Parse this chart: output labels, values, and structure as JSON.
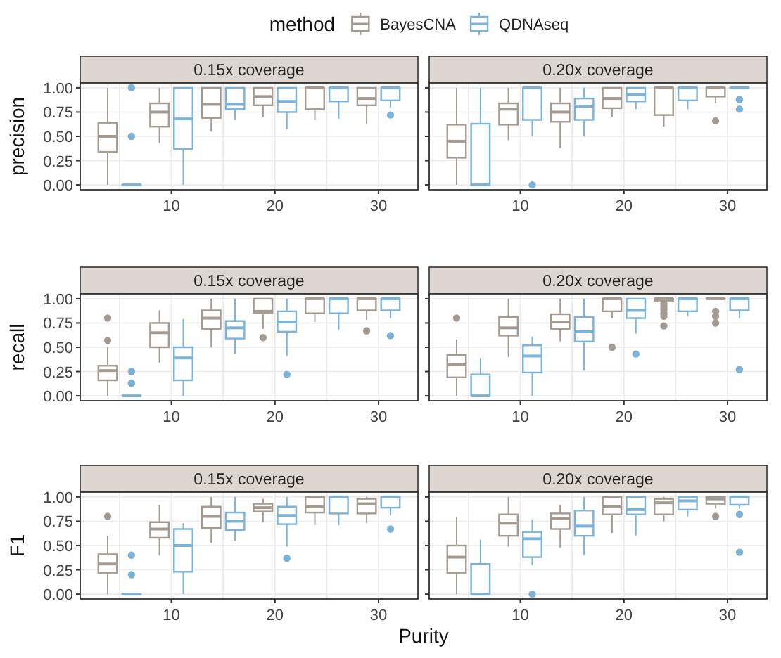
{
  "chart_data": [
    {
      "type": "box",
      "title": "0.15x coverage",
      "ylabel": "precision",
      "legend_title": "method",
      "legend": "top",
      "categories": [
        null,
        "10",
        null,
        "20",
        null,
        "30"
      ],
      "ylim": [
        -0.05,
        1.05
      ],
      "yticks": [
        {
          "value": 0,
          "label": "0.00"
        },
        {
          "value": 0.25,
          "label": "0.25"
        },
        {
          "value": 0.5,
          "label": "0.50"
        },
        {
          "value": 0.75,
          "label": "0.75"
        },
        {
          "value": 1,
          "label": "1.00"
        }
      ],
      "grid": true,
      "series": [
        {
          "name": "BayesCNA",
          "color": "#a39b91",
          "boxes": [
            {
              "low": 0,
              "q1": 0.34,
              "median": 0.5,
              "q3": 0.64,
              "high": 1
            },
            {
              "low": 0.43,
              "q1": 0.6,
              "median": 0.75,
              "q3": 0.84,
              "high": 1
            },
            {
              "low": 0.55,
              "q1": 0.69,
              "median": 0.83,
              "q3": 1,
              "high": 1
            },
            {
              "low": 0.7,
              "q1": 0.82,
              "median": 0.91,
              "q3": 1,
              "high": 1
            },
            {
              "low": 0.67,
              "q1": 0.78,
              "median": 1,
              "q3": 1,
              "high": 1
            },
            {
              "low": 0.63,
              "q1": 0.82,
              "median": 0.89,
              "q3": 1,
              "high": 1
            }
          ]
        },
        {
          "name": "QDNAseq",
          "color": "#7bb3d9",
          "boxes": [
            {
              "low": 0,
              "q1": 0,
              "median": 0,
              "q3": 0,
              "high": 0,
              "outliers": [
                0.5,
                1
              ]
            },
            {
              "low": 0,
              "q1": 0.37,
              "median": 0.68,
              "q3": 1,
              "high": 1
            },
            {
              "low": 0.67,
              "q1": 0.78,
              "median": 0.83,
              "q3": 1,
              "high": 1
            },
            {
              "low": 0.57,
              "q1": 0.75,
              "median": 0.86,
              "q3": 1,
              "high": 1
            },
            {
              "low": 0.68,
              "q1": 0.86,
              "median": 1,
              "q3": 1,
              "high": 1
            },
            {
              "low": 0.8,
              "q1": 0.87,
              "median": 1,
              "q3": 1,
              "high": 1,
              "outliers": [
                0.72
              ]
            }
          ]
        }
      ]
    },
    {
      "type": "box",
      "title": "0.20x coverage",
      "tick_labels": "x",
      "categories": [
        null,
        "10",
        null,
        "20",
        null,
        "30"
      ],
      "ylim": [
        -0.05,
        1.05
      ],
      "yticks": [
        0,
        0.25,
        0.5,
        0.75,
        1
      ],
      "grid": true,
      "series": [
        {
          "color": "#a39b91",
          "boxes": [
            {
              "low": 0,
              "q1": 0.28,
              "median": 0.45,
              "q3": 0.62,
              "high": 1
            },
            {
              "low": 0.46,
              "q1": 0.62,
              "median": 0.78,
              "q3": 0.84,
              "high": 1
            },
            {
              "low": 0.38,
              "q1": 0.65,
              "median": 0.75,
              "q3": 0.84,
              "high": 1
            },
            {
              "low": 0.7,
              "q1": 0.79,
              "median": 0.89,
              "q3": 1,
              "high": 1
            },
            {
              "low": 0.6,
              "q1": 0.72,
              "median": 1,
              "q3": 1,
              "high": 1
            },
            {
              "low": 0.84,
              "q1": 0.91,
              "median": 1,
              "q3": 1,
              "high": 1,
              "outliers": [
                0.66
              ]
            }
          ]
        },
        {
          "color": "#7bb3d9",
          "boxes": [
            {
              "low": 0,
              "q1": 0,
              "median": 0,
              "q3": 0.63,
              "high": 1
            },
            {
              "low": 0.5,
              "q1": 0.67,
              "median": 1,
              "q3": 1,
              "high": 1,
              "outliers": [
                0
              ]
            },
            {
              "low": 0.5,
              "q1": 0.67,
              "median": 0.81,
              "q3": 0.89,
              "high": 1
            },
            {
              "low": 0.78,
              "q1": 0.86,
              "median": 0.93,
              "q3": 1,
              "high": 1
            },
            {
              "low": 0.78,
              "q1": 0.87,
              "median": 1,
              "q3": 1,
              "high": 1
            },
            {
              "low": 1,
              "q1": 1,
              "median": 1,
              "q3": 1,
              "high": 1,
              "outliers": [
                0.88,
                0.78
              ]
            }
          ]
        }
      ]
    },
    {
      "type": "box",
      "title": "0.15x coverage",
      "ylabel": "recall",
      "categories": [
        null,
        "10",
        null,
        "20",
        null,
        "30"
      ],
      "ylim": [
        -0.05,
        1.05
      ],
      "yticks": [
        {
          "value": 0,
          "label": "0.00"
        },
        {
          "value": 0.25,
          "label": "0.25"
        },
        {
          "value": 0.5,
          "label": "0.50"
        },
        {
          "value": 0.75,
          "label": "0.75"
        },
        {
          "value": 1,
          "label": "1.00"
        }
      ],
      "grid": true,
      "series": [
        {
          "color": "#a39b91",
          "boxes": [
            {
              "low": 0,
              "q1": 0.16,
              "median": 0.26,
              "q3": 0.31,
              "high": 0.5,
              "outliers": [
                0.8,
                0.57
              ]
            },
            {
              "low": 0.34,
              "q1": 0.5,
              "median": 0.65,
              "q3": 0.75,
              "high": 0.88
            },
            {
              "low": 0.5,
              "q1": 0.69,
              "median": 0.8,
              "q3": 0.88,
              "high": 1
            },
            {
              "low": 0.69,
              "q1": 0.85,
              "median": 0.87,
              "q3": 1,
              "high": 1,
              "outliers": [
                0.6
              ]
            },
            {
              "low": 0.76,
              "q1": 0.85,
              "median": 1,
              "q3": 1,
              "high": 1
            },
            {
              "low": 0.78,
              "q1": 0.88,
              "median": 1,
              "q3": 1,
              "high": 1,
              "outliers": [
                0.67
              ]
            }
          ]
        },
        {
          "color": "#7bb3d9",
          "boxes": [
            {
              "low": 0,
              "q1": 0,
              "median": 0,
              "q3": 0,
              "high": 0,
              "outliers": [
                0.25,
                0.13
              ]
            },
            {
              "low": 0,
              "q1": 0.16,
              "median": 0.39,
              "q3": 0.5,
              "high": 0.79
            },
            {
              "low": 0.43,
              "q1": 0.59,
              "median": 0.7,
              "q3": 0.77,
              "high": 1
            },
            {
              "low": 0.41,
              "q1": 0.66,
              "median": 0.76,
              "q3": 0.87,
              "high": 1,
              "outliers": [
                0.22
              ]
            },
            {
              "low": 0.68,
              "q1": 0.85,
              "median": 1,
              "q3": 1,
              "high": 1
            },
            {
              "low": 0.8,
              "q1": 0.88,
              "median": 1,
              "q3": 1,
              "high": 1,
              "outliers": [
                0.62
              ]
            }
          ]
        }
      ]
    },
    {
      "type": "box",
      "title": "0.20x coverage",
      "tick_labels": "x",
      "categories": [
        null,
        "10",
        null,
        "20",
        null,
        "30"
      ],
      "ylim": [
        -0.05,
        1.05
      ],
      "yticks": [
        0,
        0.25,
        0.5,
        0.75,
        1
      ],
      "grid": true,
      "series": [
        {
          "color": "#a39b91",
          "boxes": [
            {
              "low": 0,
              "q1": 0.19,
              "median": 0.32,
              "q3": 0.42,
              "high": 0.58,
              "outliers": [
                0.8
              ]
            },
            {
              "low": 0.4,
              "q1": 0.62,
              "median": 0.7,
              "q3": 0.81,
              "high": 1
            },
            {
              "low": 0.56,
              "q1": 0.69,
              "median": 0.76,
              "q3": 0.84,
              "high": 1
            },
            {
              "low": 0.8,
              "q1": 0.87,
              "median": 1,
              "q3": 1,
              "high": 1,
              "outliers": [
                0.5
              ]
            },
            {
              "low": 0.98,
              "q1": 0.98,
              "median": 1,
              "q3": 1,
              "high": 1,
              "outliers": [
                0.95,
                0.92,
                0.89,
                0.85,
                0.82,
                0.72
              ]
            },
            {
              "low": 1,
              "q1": 1,
              "median": 1,
              "q3": 1,
              "high": 1,
              "outliers": [
                0.87,
                0.82,
                0.75
              ]
            }
          ]
        },
        {
          "color": "#7bb3d9",
          "boxes": [
            {
              "low": 0,
              "q1": 0,
              "median": 0,
              "q3": 0.22,
              "high": 0.39
            },
            {
              "low": 0,
              "q1": 0.24,
              "median": 0.41,
              "q3": 0.52,
              "high": 0.61
            },
            {
              "low": 0.26,
              "q1": 0.56,
              "median": 0.66,
              "q3": 0.81,
              "high": 1
            },
            {
              "low": 0.64,
              "q1": 0.8,
              "median": 0.88,
              "q3": 1,
              "high": 1,
              "outliers": [
                0.43
              ]
            },
            {
              "low": 0.82,
              "q1": 0.87,
              "median": 1,
              "q3": 1,
              "high": 1
            },
            {
              "low": 0.8,
              "q1": 0.88,
              "median": 1,
              "q3": 1,
              "high": 1,
              "outliers": [
                0.27
              ]
            }
          ]
        }
      ]
    },
    {
      "type": "box",
      "title": "0.15x coverage",
      "ylabel": "F1",
      "xlabel": "Purity",
      "categories": [
        null,
        "10",
        null,
        "20",
        null,
        "30"
      ],
      "ylim": [
        -0.05,
        1.05
      ],
      "yticks": [
        {
          "value": 0,
          "label": "0.00"
        },
        {
          "value": 0.25,
          "label": "0.25"
        },
        {
          "value": 0.5,
          "label": "0.50"
        },
        {
          "value": 0.75,
          "label": "0.75"
        },
        {
          "value": 1,
          "label": "1.00"
        }
      ],
      "grid": true,
      "series": [
        {
          "color": "#a39b91",
          "boxes": [
            {
              "low": 0,
              "q1": 0.22,
              "median": 0.31,
              "q3": 0.41,
              "high": 0.6,
              "outliers": [
                0.8
              ]
            },
            {
              "low": 0.4,
              "q1": 0.58,
              "median": 0.67,
              "q3": 0.74,
              "high": 0.92
            },
            {
              "low": 0.53,
              "q1": 0.68,
              "median": 0.8,
              "q3": 0.9,
              "high": 1
            },
            {
              "low": 0.74,
              "q1": 0.85,
              "median": 0.89,
              "q3": 0.93,
              "high": 0.98
            },
            {
              "low": 0.71,
              "q1": 0.84,
              "median": 0.9,
              "q3": 1,
              "high": 1
            },
            {
              "low": 0.73,
              "q1": 0.83,
              "median": 0.93,
              "q3": 0.98,
              "high": 1
            }
          ]
        },
        {
          "color": "#7bb3d9",
          "boxes": [
            {
              "low": 0,
              "q1": 0,
              "median": 0,
              "q3": 0,
              "high": 0,
              "outliers": [
                0.4,
                0.2
              ]
            },
            {
              "low": 0,
              "q1": 0.23,
              "median": 0.5,
              "q3": 0.67,
              "high": 0.73
            },
            {
              "low": 0.55,
              "q1": 0.66,
              "median": 0.75,
              "q3": 0.84,
              "high": 1
            },
            {
              "low": 0.49,
              "q1": 0.72,
              "median": 0.81,
              "q3": 0.9,
              "high": 1,
              "outliers": [
                0.37
              ]
            },
            {
              "low": 0.71,
              "q1": 0.83,
              "median": 1,
              "q3": 1,
              "high": 1
            },
            {
              "low": 0.81,
              "q1": 0.89,
              "median": 1,
              "q3": 1,
              "high": 1,
              "outliers": [
                0.67
              ]
            }
          ]
        }
      ]
    },
    {
      "type": "box",
      "title": "0.20x coverage",
      "tick_labels": "x",
      "categories": [
        null,
        "10",
        null,
        "20",
        null,
        "30"
      ],
      "ylim": [
        -0.05,
        1.05
      ],
      "yticks": [
        0,
        0.25,
        0.5,
        0.75,
        1
      ],
      "grid": true,
      "series": [
        {
          "color": "#a39b91",
          "boxes": [
            {
              "low": 0,
              "q1": 0.22,
              "median": 0.38,
              "q3": 0.5,
              "high": 0.79
            },
            {
              "low": 0.49,
              "q1": 0.6,
              "median": 0.73,
              "q3": 0.82,
              "high": 1
            },
            {
              "low": 0.48,
              "q1": 0.67,
              "median": 0.78,
              "q3": 0.83,
              "high": 0.92
            },
            {
              "low": 0.63,
              "q1": 0.82,
              "median": 0.9,
              "q3": 1,
              "high": 1
            },
            {
              "low": 0.75,
              "q1": 0.82,
              "median": 0.94,
              "q3": 0.98,
              "high": 1
            },
            {
              "low": 0.88,
              "q1": 0.93,
              "median": 0.98,
              "q3": 1,
              "high": 1,
              "outliers": [
                0.8
              ]
            }
          ]
        },
        {
          "color": "#7bb3d9",
          "boxes": [
            {
              "low": 0,
              "q1": 0,
              "median": 0,
              "q3": 0.31,
              "high": 0.56
            },
            {
              "low": 0.3,
              "q1": 0.38,
              "median": 0.57,
              "q3": 0.64,
              "high": 0.77,
              "outliers": [
                0
              ]
            },
            {
              "low": 0.4,
              "q1": 0.6,
              "median": 0.7,
              "q3": 0.86,
              "high": 1
            },
            {
              "low": 0.6,
              "q1": 0.82,
              "median": 0.87,
              "q3": 1,
              "high": 1
            },
            {
              "low": 0.8,
              "q1": 0.87,
              "median": 0.96,
              "q3": 1,
              "high": 1
            },
            {
              "low": 0.88,
              "q1": 0.92,
              "median": 1,
              "q3": 1,
              "high": 1,
              "outliers": [
                0.82,
                0.43
              ]
            }
          ]
        }
      ]
    }
  ]
}
